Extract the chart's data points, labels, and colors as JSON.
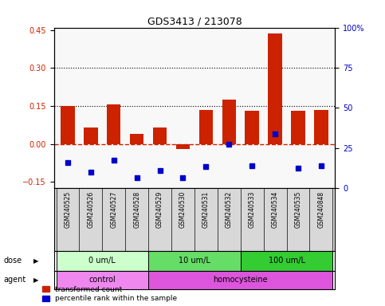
{
  "title": "GDS3413 / 213078",
  "samples": [
    "GSM240525",
    "GSM240526",
    "GSM240527",
    "GSM240528",
    "GSM240529",
    "GSM240530",
    "GSM240531",
    "GSM240532",
    "GSM240533",
    "GSM240534",
    "GSM240535",
    "GSM240848"
  ],
  "red_values": [
    0.15,
    0.065,
    0.155,
    0.04,
    0.065,
    -0.02,
    0.135,
    0.175,
    0.13,
    0.435,
    0.13,
    0.135
  ],
  "blue_values": [
    -0.075,
    -0.11,
    -0.065,
    -0.135,
    -0.105,
    -0.135,
    -0.09,
    0.0,
    -0.085,
    0.04,
    -0.095,
    -0.085
  ],
  "ylim": [
    -0.175,
    0.46
  ],
  "right_ylim": [
    0,
    100
  ],
  "right_yticks": [
    0,
    25,
    50,
    75,
    100
  ],
  "right_yticklabels": [
    "0",
    "25",
    "50",
    "75",
    "100%"
  ],
  "left_yticks": [
    -0.15,
    0.0,
    0.15,
    0.3,
    0.45
  ],
  "hlines": [
    0.15,
    0.3
  ],
  "red_color": "#cc2200",
  "blue_color": "#0000cc",
  "dashed_zero_color": "#cc2200",
  "dose_groups": [
    {
      "label": "0 um/L",
      "start": 0,
      "end": 4,
      "color": "#ccffcc"
    },
    {
      "label": "10 um/L",
      "start": 4,
      "end": 8,
      "color": "#66dd66"
    },
    {
      "label": "100 um/L",
      "start": 8,
      "end": 12,
      "color": "#33cc33"
    }
  ],
  "agent_groups": [
    {
      "label": "control",
      "start": 0,
      "end": 4,
      "color": "#ee88ee"
    },
    {
      "label": "homocysteine",
      "start": 4,
      "end": 12,
      "color": "#dd55dd"
    }
  ],
  "label_color": "#555555",
  "bg_color": "#d8d8d8",
  "plot_bg": "#f8f8f8"
}
